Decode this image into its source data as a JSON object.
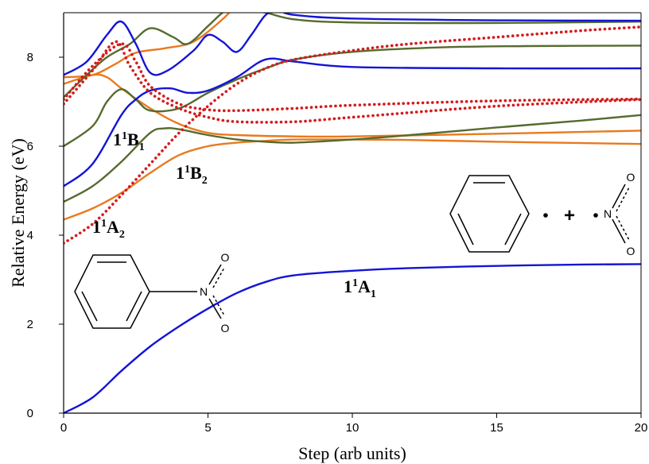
{
  "chart_data": {
    "type": "line",
    "xlabel": "Step (arb  units)",
    "ylabel": "Relative Energy (eV)",
    "xlim": [
      0,
      20
    ],
    "ylim": [
      0,
      9
    ],
    "x_ticks": [
      "0",
      "5",
      "10",
      "15",
      "20"
    ],
    "y_ticks": [
      "0",
      "2",
      "4",
      "6",
      "8"
    ],
    "grid": false,
    "legend": "none",
    "state_labels": [
      {
        "id": "b1",
        "main": "1",
        "sup": "1",
        "sym": "B",
        "sub": "1"
      },
      {
        "id": "b2",
        "main": "1",
        "sup": "1",
        "sym": "B",
        "sub": "2"
      },
      {
        "id": "a2",
        "main": "1",
        "sup": "1",
        "sym": "A",
        "sub": "2"
      },
      {
        "id": "a1",
        "main": "1",
        "sup": "1",
        "sym": "A",
        "sub": "1"
      }
    ],
    "molecule_atoms": {
      "n": "N",
      "o": "O"
    },
    "plus_sign": "+",
    "series": [
      {
        "color": "#1414d6",
        "style": "solid",
        "points": [
          [
            0,
            0.0
          ],
          [
            1,
            0.35
          ],
          [
            2,
            0.95
          ],
          [
            3,
            1.5
          ],
          [
            4,
            1.95
          ],
          [
            5,
            2.35
          ],
          [
            6,
            2.7
          ],
          [
            7,
            2.95
          ],
          [
            8,
            3.1
          ],
          [
            10,
            3.2
          ],
          [
            12,
            3.26
          ],
          [
            15,
            3.31
          ],
          [
            18,
            3.34
          ],
          [
            20,
            3.35
          ]
        ]
      },
      {
        "color": "#e87a1f",
        "style": "solid",
        "points": [
          [
            0,
            4.35
          ],
          [
            1,
            4.6
          ],
          [
            2,
            4.95
          ],
          [
            3,
            5.4
          ],
          [
            4,
            5.8
          ],
          [
            5,
            6.0
          ],
          [
            6,
            6.08
          ],
          [
            7,
            6.12
          ],
          [
            8,
            6.15
          ],
          [
            10,
            6.15
          ],
          [
            12,
            6.14
          ],
          [
            15,
            6.1
          ],
          [
            18,
            6.07
          ],
          [
            20,
            6.05
          ]
        ]
      },
      {
        "color": "#e87a1f",
        "style": "solid",
        "points": [
          [
            0,
            7.4
          ],
          [
            1,
            7.6
          ],
          [
            1.5,
            7.55
          ],
          [
            2,
            7.3
          ],
          [
            3,
            6.85
          ],
          [
            4,
            6.5
          ],
          [
            5,
            6.3
          ],
          [
            6,
            6.25
          ],
          [
            8,
            6.22
          ],
          [
            10,
            6.22
          ],
          [
            15,
            6.28
          ],
          [
            20,
            6.35
          ]
        ]
      },
      {
        "color": "#e87a1f",
        "style": "solid",
        "points": [
          [
            0,
            7.55
          ],
          [
            1,
            7.6
          ],
          [
            1.8,
            7.85
          ],
          [
            2.5,
            8.1
          ],
          [
            3.5,
            8.2
          ],
          [
            4.5,
            8.35
          ],
          [
            5.5,
            8.85
          ],
          [
            6,
            9.2
          ]
        ]
      },
      {
        "color": "#566b2f",
        "style": "solid",
        "points": [
          [
            0,
            4.75
          ],
          [
            1,
            5.1
          ],
          [
            2,
            5.65
          ],
          [
            3,
            6.3
          ],
          [
            3.5,
            6.4
          ],
          [
            4,
            6.38
          ],
          [
            5,
            6.25
          ],
          [
            6,
            6.15
          ],
          [
            7,
            6.1
          ],
          [
            8,
            6.08
          ],
          [
            10,
            6.15
          ],
          [
            12,
            6.25
          ],
          [
            15,
            6.42
          ],
          [
            18,
            6.58
          ],
          [
            20,
            6.7
          ]
        ]
      },
      {
        "color": "#566b2f",
        "style": "solid",
        "points": [
          [
            0,
            6.0
          ],
          [
            1,
            6.45
          ],
          [
            1.5,
            7.0
          ],
          [
            2,
            7.28
          ],
          [
            2.5,
            7.05
          ],
          [
            3,
            6.8
          ],
          [
            4,
            6.85
          ],
          [
            5,
            7.2
          ],
          [
            6,
            7.5
          ],
          [
            7,
            7.75
          ],
          [
            8,
            7.95
          ],
          [
            10,
            8.12
          ],
          [
            13,
            8.22
          ],
          [
            16,
            8.25
          ],
          [
            20,
            8.26
          ]
        ]
      },
      {
        "color": "#566b2f",
        "style": "solid",
        "points": [
          [
            0,
            7.1
          ],
          [
            0.8,
            7.6
          ],
          [
            1.5,
            8.0
          ],
          [
            2.3,
            8.3
          ],
          [
            3,
            8.65
          ],
          [
            3.8,
            8.45
          ],
          [
            4.3,
            8.3
          ],
          [
            5,
            8.7
          ],
          [
            5.5,
            9.0
          ],
          [
            6,
            9.2
          ]
        ]
      },
      {
        "color": "#566b2f",
        "style": "solid",
        "points": [
          [
            6,
            9.1
          ],
          [
            7,
            9.0
          ],
          [
            8,
            8.85
          ],
          [
            10,
            8.78
          ],
          [
            15,
            8.77
          ],
          [
            20,
            8.8
          ]
        ]
      },
      {
        "color": "#1414d6",
        "style": "solid",
        "points": [
          [
            0,
            5.1
          ],
          [
            1,
            5.6
          ],
          [
            2,
            6.7
          ],
          [
            2.5,
            7.05
          ],
          [
            3,
            7.25
          ],
          [
            3.7,
            7.3
          ],
          [
            4.3,
            7.2
          ],
          [
            5,
            7.25
          ],
          [
            6,
            7.55
          ],
          [
            7,
            7.95
          ],
          [
            8,
            7.9
          ],
          [
            10,
            7.78
          ],
          [
            15,
            7.75
          ],
          [
            20,
            7.75
          ]
        ]
      },
      {
        "color": "#1414d6",
        "style": "solid",
        "points": [
          [
            0,
            7.6
          ],
          [
            0.8,
            7.9
          ],
          [
            1.5,
            8.5
          ],
          [
            2,
            8.8
          ],
          [
            2.5,
            8.3
          ],
          [
            3,
            7.65
          ],
          [
            3.6,
            7.7
          ],
          [
            4.5,
            8.15
          ],
          [
            5,
            8.5
          ],
          [
            5.5,
            8.35
          ],
          [
            6,
            8.12
          ],
          [
            6.5,
            8.5
          ],
          [
            7,
            8.95
          ],
          [
            7.5,
            9.1
          ]
        ]
      },
      {
        "color": "#1414d6",
        "style": "solid",
        "points": [
          [
            7.5,
            9.05
          ],
          [
            8,
            8.95
          ],
          [
            10,
            8.87
          ],
          [
            15,
            8.83
          ],
          [
            20,
            8.82
          ]
        ]
      },
      {
        "color": "#d41c1c",
        "style": "dotted",
        "points": [
          [
            0,
            3.82
          ],
          [
            1,
            4.25
          ],
          [
            2,
            4.9
          ],
          [
            3,
            5.6
          ],
          [
            4,
            6.3
          ],
          [
            5,
            6.9
          ],
          [
            6,
            7.4
          ],
          [
            7,
            7.75
          ],
          [
            8,
            7.95
          ],
          [
            10,
            8.15
          ],
          [
            12,
            8.3
          ],
          [
            15,
            8.45
          ],
          [
            18,
            8.6
          ],
          [
            20,
            8.68
          ]
        ]
      },
      {
        "color": "#d41c1c",
        "style": "dotted",
        "points": [
          [
            0,
            7.05
          ],
          [
            1,
            7.8
          ],
          [
            2,
            8.3
          ],
          [
            2.5,
            7.9
          ],
          [
            3,
            7.35
          ],
          [
            4,
            6.95
          ],
          [
            5,
            6.82
          ],
          [
            6,
            6.8
          ],
          [
            8,
            6.85
          ],
          [
            10,
            6.92
          ],
          [
            15,
            7.02
          ],
          [
            20,
            7.06
          ]
        ]
      },
      {
        "color": "#d41c1c",
        "style": "dotted",
        "points": [
          [
            0,
            6.95
          ],
          [
            1,
            7.7
          ],
          [
            1.8,
            8.35
          ],
          [
            2.3,
            7.8
          ],
          [
            3,
            7.2
          ],
          [
            4,
            6.85
          ],
          [
            5,
            6.65
          ],
          [
            6,
            6.55
          ],
          [
            8,
            6.55
          ],
          [
            10,
            6.65
          ],
          [
            15,
            6.9
          ],
          [
            20,
            7.05
          ]
        ]
      }
    ]
  }
}
